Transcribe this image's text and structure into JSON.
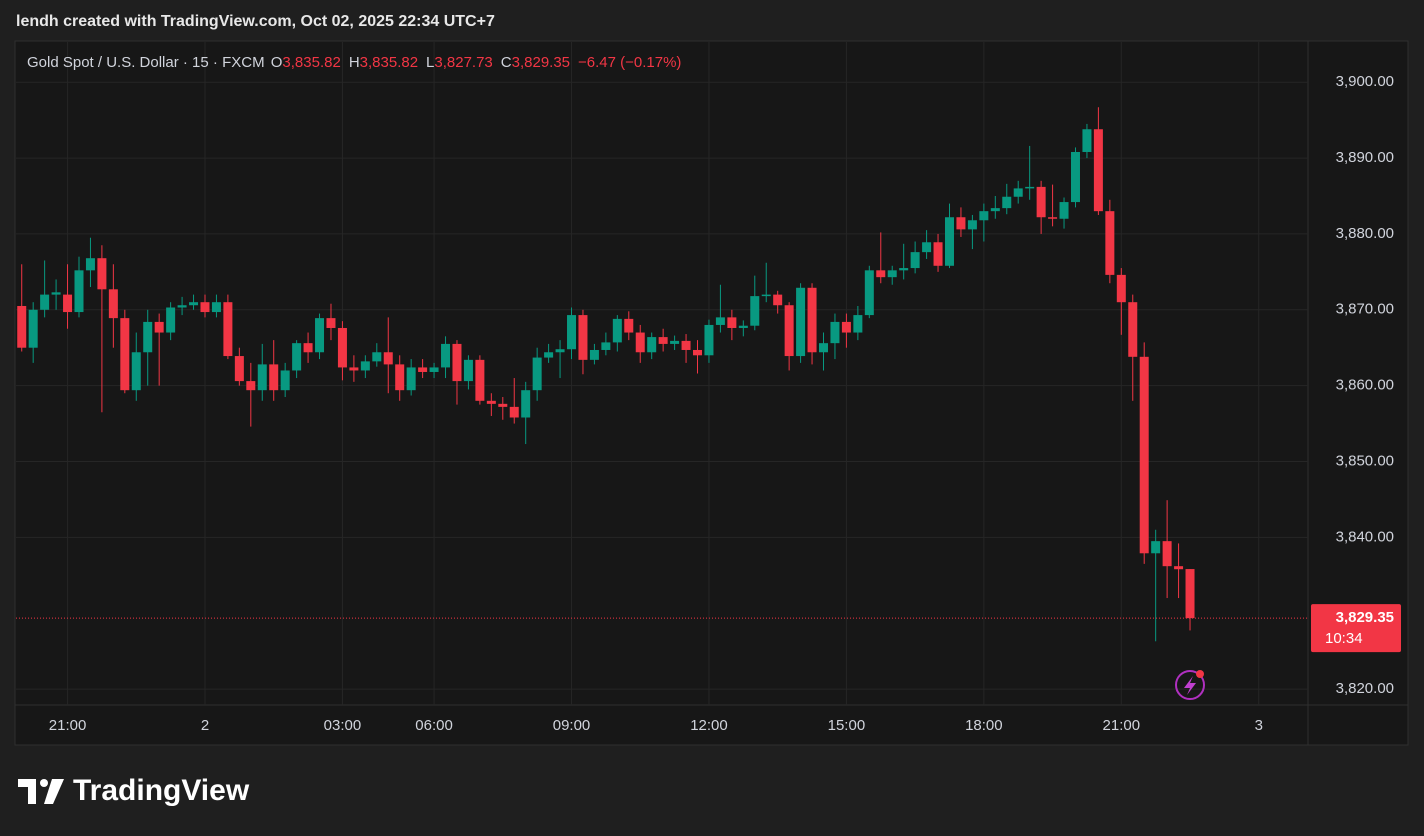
{
  "header": {
    "caption": "lendh created with TradingView.com, Oct 02, 2025 22:34 UTC+7"
  },
  "legend": {
    "symbol": "Gold Spot / U.S. Dollar · 15 · FXCM",
    "o_label": "O",
    "o": "3,835.82",
    "h_label": "H",
    "h": "3,835.82",
    "l_label": "L",
    "l": "3,827.73",
    "c_label": "C",
    "c": "3,829.35",
    "change": "−6.47 (−0.17%)"
  },
  "price_tag": {
    "price": "3,829.35",
    "countdown": "10:34"
  },
  "footer": {
    "brand": "TradingView"
  },
  "chart_data": {
    "type": "candlestick",
    "up_color": "#089981",
    "down_color": "#f23645",
    "grid": true,
    "open": [
      3870.5,
      3865,
      3870,
      3872,
      3872,
      3869.7,
      3875.2,
      3876.8,
      3872.7,
      3868.9,
      3859.4,
      3864.4,
      3868.4,
      3867,
      3870.3,
      3870.6,
      3871,
      3869.7,
      3871,
      3863.9,
      3860.6,
      3859.4,
      3862.8,
      3859.4,
      3862,
      3865.6,
      3864.4,
      3868.9,
      3867.6,
      3862.4,
      3862,
      3863.2,
      3864.4,
      3862.8,
      3859.4,
      3862.4,
      3861.8,
      3862.4,
      3865.5,
      3860.6,
      3863.4,
      3858,
      3857.6,
      3857.2,
      3855.8,
      3859.4,
      3863.7,
      3864.4,
      3864.8,
      3869.3,
      3863.4,
      3864.7,
      3865.7,
      3868.8,
      3867,
      3864.4,
      3866.4,
      3865.5,
      3865.9,
      3864.7,
      3864,
      3868,
      3869,
      3867.6,
      3867.9,
      3871.8,
      3872,
      3870.6,
      3863.9,
      3872.9,
      3864.4,
      3865.6,
      3868.4,
      3867,
      3869.3,
      3875.2,
      3874.3,
      3875.2,
      3875.5,
      3877.6,
      3878.9,
      3875.8,
      3882.2,
      3880.6,
      3881.8,
      3883,
      3883.4,
      3884.9,
      3886,
      3886.2,
      3882.2,
      3882,
      3884.2,
      3890.8,
      3893.8,
      3883,
      3874.6,
      3871,
      3863.8,
      3837.9,
      3839.5,
      3836.2,
      3835.82
    ],
    "high": [
      3876,
      3871,
      3876.5,
      3874,
      3876,
      3877,
      3879.5,
      3878.5,
      3876,
      3870,
      3867,
      3870,
      3869.5,
      3871,
      3871.7,
      3872,
      3872,
      3872,
      3872,
      3865,
      3863,
      3865.5,
      3866,
      3863,
      3866,
      3867,
      3869.5,
      3870.8,
      3868.5,
      3864,
      3864,
      3865.6,
      3869,
      3864,
      3863.5,
      3863.5,
      3863,
      3866.5,
      3866,
      3864,
      3864,
      3859,
      3858.5,
      3861,
      3860.5,
      3865,
      3865.5,
      3866,
      3870.3,
      3870,
      3865.5,
      3867,
      3869.3,
      3869.8,
      3868,
      3867,
      3867.5,
      3866.6,
      3866.8,
      3866,
      3868.7,
      3873.3,
      3870,
      3868.6,
      3874.5,
      3876.2,
      3872.5,
      3871,
      3873.5,
      3873.5,
      3867,
      3869.5,
      3869.5,
      3870.5,
      3875.8,
      3880.2,
      3875.8,
      3878.7,
      3879,
      3880.5,
      3880,
      3884,
      3883.5,
      3882.5,
      3884,
      3885,
      3886.6,
      3887,
      3891.6,
      3887,
      3886.5,
      3884.8,
      3891.4,
      3894.5,
      3896.7,
      3884.5,
      3875.5,
      3872,
      3865.7,
      3841,
      3844.9,
      3839.2,
      3835.82
    ],
    "low": [
      3864.5,
      3863,
      3869,
      3870,
      3867.5,
      3869,
      3873,
      3856.5,
      3865,
      3859,
      3858,
      3860,
      3860,
      3866,
      3869.3,
      3870,
      3869,
      3869,
      3863.5,
      3860,
      3854.6,
      3858,
      3858,
      3858.5,
      3861,
      3863,
      3863.5,
      3866,
      3860.7,
      3860.5,
      3861,
      3862.5,
      3859,
      3858,
      3858.7,
      3861,
      3861,
      3861,
      3857.5,
      3859.5,
      3857.5,
      3856,
      3855.5,
      3855,
      3852.3,
      3858,
      3863,
      3861,
      3863.5,
      3861.5,
      3862.8,
      3864,
      3864.5,
      3866,
      3863,
      3863.5,
      3864.5,
      3864.7,
      3863,
      3861.6,
      3863,
      3867,
      3866,
      3866.5,
      3867.3,
      3871,
      3869.5,
      3862,
      3863,
      3862.8,
      3862,
      3863.5,
      3865,
      3866,
      3868.9,
      3873.5,
      3873.3,
      3874,
      3874.8,
      3876.7,
      3875,
      3875.5,
      3879.6,
      3878,
      3879,
      3882,
      3882.6,
      3884,
      3884.5,
      3880,
      3881,
      3880.7,
      3883.5,
      3890,
      3882.5,
      3873.5,
      3866.7,
      3858,
      3836.5,
      3826.3,
      3832,
      3832,
      3827.73
    ],
    "close": [
      3865,
      3870,
      3872,
      3872.3,
      3869.7,
      3875.2,
      3876.8,
      3872.7,
      3868.9,
      3859.4,
      3864.4,
      3868.4,
      3867,
      3870.3,
      3870.6,
      3871,
      3869.7,
      3871,
      3863.9,
      3860.6,
      3859.4,
      3862.8,
      3859.4,
      3862,
      3865.6,
      3864.4,
      3868.9,
      3867.6,
      3862.4,
      3862,
      3863.2,
      3864.4,
      3862.8,
      3859.4,
      3862.4,
      3861.8,
      3862.4,
      3865.5,
      3860.6,
      3863.4,
      3858,
      3857.6,
      3857.2,
      3855.8,
      3859.4,
      3863.7,
      3864.4,
      3864.8,
      3869.3,
      3863.4,
      3864.7,
      3865.7,
      3868.8,
      3867,
      3864.4,
      3866.4,
      3865.5,
      3865.9,
      3864.7,
      3864,
      3868,
      3869,
      3867.6,
      3867.9,
      3871.8,
      3872,
      3870.6,
      3863.9,
      3872.9,
      3864.4,
      3865.6,
      3868.4,
      3867,
      3869.3,
      3875.2,
      3874.3,
      3875.2,
      3875.5,
      3877.6,
      3878.9,
      3875.8,
      3882.2,
      3880.6,
      3881.8,
      3883,
      3883.4,
      3884.9,
      3886,
      3886.2,
      3882.2,
      3882,
      3884.2,
      3890.8,
      3893.8,
      3883,
      3874.6,
      3871,
      3863.8,
      3837.9,
      3839.5,
      3836.2,
      3835.8,
      3829.35
    ],
    "last_price": 3829.35,
    "ylim": [
      3817.9,
      3905.3
    ],
    "yticks": [
      {
        "value": 3820,
        "label": "3,820.00"
      },
      {
        "value": 3840,
        "label": "3,840.00"
      },
      {
        "value": 3850,
        "label": "3,850.00"
      },
      {
        "value": 3860,
        "label": "3,860.00"
      },
      {
        "value": 3870,
        "label": "3,870.00"
      },
      {
        "value": 3880,
        "label": "3,880.00"
      },
      {
        "value": 3890,
        "label": "3,890.00"
      },
      {
        "value": 3900,
        "label": "3,900.00"
      }
    ],
    "xlim": [
      -0.5,
      112.3
    ],
    "xticks": [
      {
        "value": 4,
        "label": "21:00"
      },
      {
        "value": 16,
        "label": "2"
      },
      {
        "value": 28,
        "label": "03:00"
      },
      {
        "value": 36,
        "label": "06:00"
      },
      {
        "value": 48,
        "label": "09:00"
      },
      {
        "value": 60,
        "label": "12:00"
      },
      {
        "value": 72,
        "label": "15:00"
      },
      {
        "value": 84,
        "label": "18:00"
      },
      {
        "value": 96,
        "label": "21:00"
      },
      {
        "value": 108,
        "label": "3"
      }
    ]
  }
}
